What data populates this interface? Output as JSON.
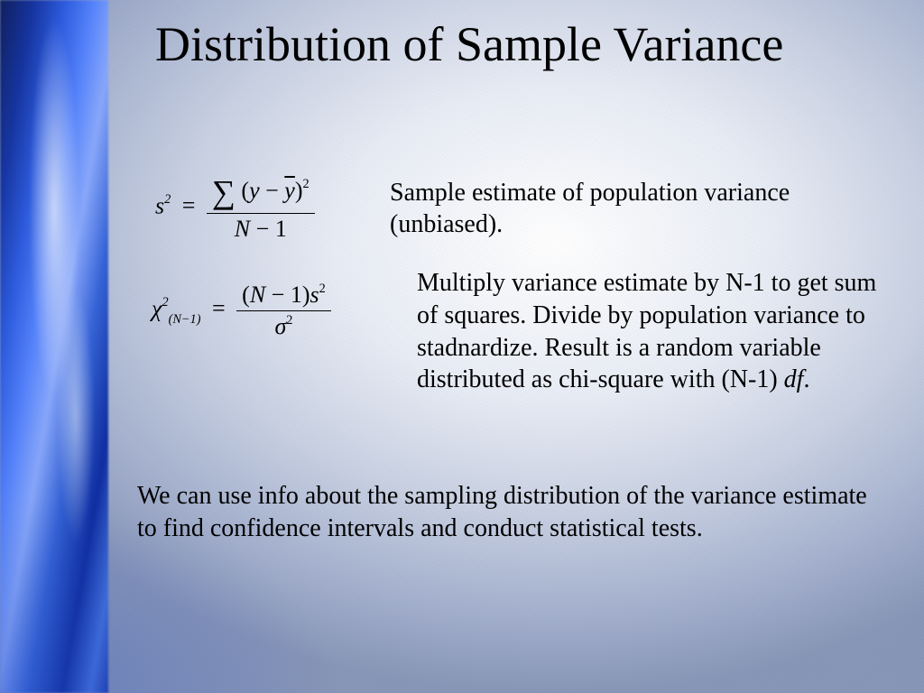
{
  "slide": {
    "title": "Distribution of Sample Variance",
    "title_fontsize": 54,
    "title_color": "#000000",
    "body_fontsize": 28,
    "body_color": "#000000",
    "background": {
      "radial_center": "#ffffff",
      "radial_mid": "#c8d0e2",
      "radial_edge": "#8896b8",
      "accent_colors": [
        "#0a1a5a",
        "#1030a0",
        "#2858e0",
        "#5080ff",
        "#88a8ff"
      ]
    },
    "row1": {
      "formula": {
        "lhs_var": "s",
        "lhs_sup": "2",
        "sum_symbol": "∑",
        "num_open": "(",
        "num_a": "y",
        "num_minus": " − ",
        "num_b_bar": "y",
        "num_close": ")",
        "num_sup": "2",
        "den_a": "N",
        "den_minus": " − ",
        "den_b": "1"
      },
      "desc": "Sample estimate of population variance (unbiased)."
    },
    "row2": {
      "formula": {
        "lhs_var": "χ",
        "lhs_sub": "(N−1)",
        "lhs_sup": "2",
        "num_open": "(",
        "num_a": "N",
        "num_minus": " − ",
        "num_b": "1",
        "num_close": ")",
        "num_var": "s",
        "num_sup": "2",
        "den_var": "σ",
        "den_sup": "2"
      },
      "desc_a": "Multiply variance estimate by N-1 to get sum of squares.  Divide by population variance to stadnardize.  Result is a random variable distributed as chi-square with (N-1) ",
      "desc_b_italic": "df",
      "desc_c": "."
    },
    "body": "We can use info about the sampling distribution of the variance estimate to find confidence intervals and conduct statistical tests."
  }
}
